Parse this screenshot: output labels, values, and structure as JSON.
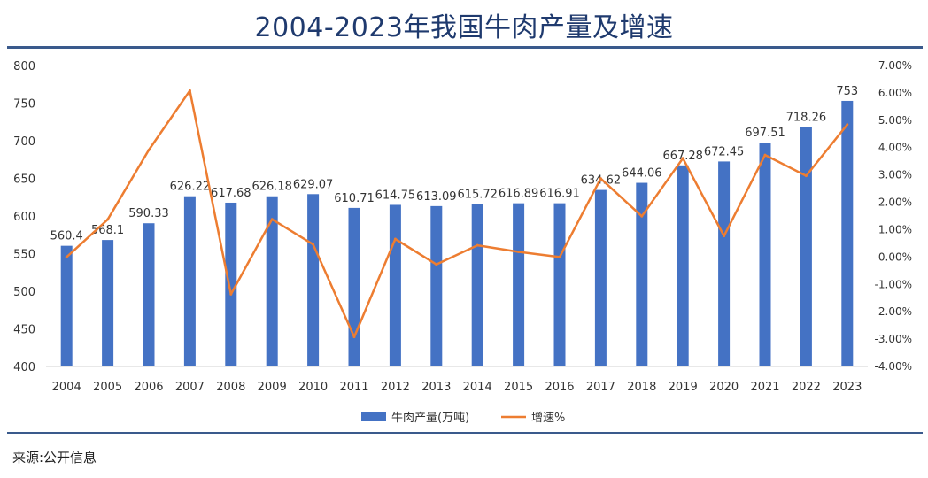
{
  "header": {
    "title": "2004-2023年我国牛肉产量及增速"
  },
  "footer": {
    "source": "来源:公开信息"
  },
  "colors": {
    "bar": "#4472C4",
    "line": "#ED7D31",
    "rule": "#3a5a8c",
    "title": "#1f3a6e"
  },
  "chart_data": {
    "type": "bar",
    "title": "2004-2023年我国牛肉产量及增速",
    "categories": [
      "2004",
      "2005",
      "2006",
      "2007",
      "2008",
      "2009",
      "2010",
      "2011",
      "2012",
      "2013",
      "2014",
      "2015",
      "2016",
      "2017",
      "2018",
      "2019",
      "2020",
      "2021",
      "2022",
      "2023"
    ],
    "series": [
      {
        "name": "牛肉产量(万吨)",
        "type": "bar",
        "axis": "left",
        "values": [
          560.4,
          568.1,
          590.33,
          626.22,
          617.68,
          626.18,
          629.07,
          610.71,
          614.75,
          613.09,
          615.72,
          616.89,
          616.91,
          634.62,
          644.06,
          667.28,
          672.45,
          697.51,
          718.26,
          753
        ],
        "labels": [
          "560.4",
          "568.1",
          "590.33",
          "626.22",
          "617.68",
          "626.18",
          "629.07",
          "610.71",
          "614.75",
          "613.09",
          "615.72",
          "616.89",
          "616.91",
          "634.62",
          "644.06",
          "667.28",
          "672.45",
          "697.51",
          "718.26",
          "753"
        ]
      },
      {
        "name": "增速%",
        "type": "line",
        "axis": "right",
        "values": [
          0.0,
          1.37,
          3.91,
          6.08,
          -1.36,
          1.38,
          0.46,
          -2.92,
          0.66,
          -0.27,
          0.43,
          0.19,
          0.0,
          2.87,
          1.49,
          3.61,
          0.77,
          3.73,
          2.97,
          4.84
        ]
      }
    ],
    "yleft": {
      "min": 400,
      "max": 800,
      "step": 50,
      "ticks": [
        "400",
        "450",
        "500",
        "550",
        "600",
        "650",
        "700",
        "750",
        "800"
      ]
    },
    "yright": {
      "min": -4,
      "max": 7,
      "step": 1,
      "ticks": [
        "-4.00%",
        "-3.00%",
        "-2.00%",
        "-1.00%",
        "0.00%",
        "1.00%",
        "2.00%",
        "3.00%",
        "4.00%",
        "5.00%",
        "6.00%",
        "7.00%"
      ]
    },
    "grid": false,
    "legend": "bottom-center"
  }
}
